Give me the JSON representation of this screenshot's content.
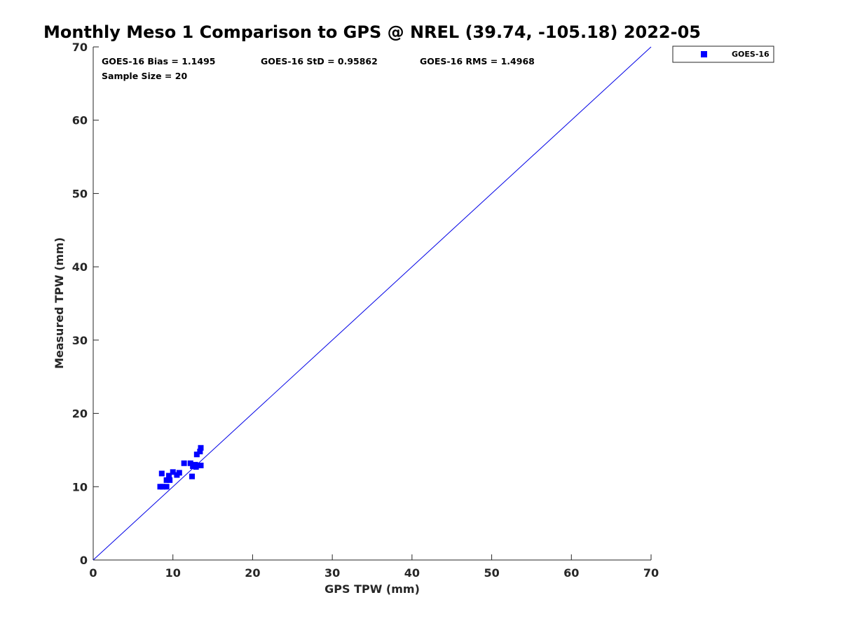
{
  "chart_data": {
    "type": "scatter",
    "title": "Monthly Meso 1 Comparison to GPS @ NREL (39.74, -105.18) 2022-05",
    "xlabel": "GPS TPW (mm)",
    "ylabel": "Measured TPW (mm)",
    "xlim": [
      0,
      70
    ],
    "ylim": [
      0,
      70
    ],
    "xticks": [
      0,
      10,
      20,
      30,
      40,
      50,
      60,
      70
    ],
    "yticks": [
      0,
      10,
      20,
      30,
      40,
      50,
      60,
      70
    ],
    "grid": false,
    "legend_position": "top-right outside",
    "reference_line": {
      "from": [
        0,
        0
      ],
      "to": [
        70,
        70
      ],
      "color": "#0000e6"
    },
    "stats": {
      "bias": "GOES-16 Bias = 1.1495",
      "std": "GOES-16 StD = 0.95862",
      "rms": "GOES-16 RMS = 1.4968",
      "sample_size": "Sample Size = 20"
    },
    "series": [
      {
        "name": "GOES-16",
        "color": "#0000ff",
        "marker": "square",
        "points": [
          [
            8.4,
            10.0
          ],
          [
            8.7,
            10.0
          ],
          [
            9.2,
            10.0
          ],
          [
            8.6,
            11.8
          ],
          [
            9.2,
            10.9
          ],
          [
            9.6,
            10.9
          ],
          [
            9.5,
            11.5
          ],
          [
            10.0,
            12.0
          ],
          [
            10.5,
            11.6
          ],
          [
            10.8,
            11.9
          ],
          [
            11.4,
            13.2
          ],
          [
            12.2,
            13.2
          ],
          [
            12.5,
            12.8
          ],
          [
            12.4,
            11.4
          ],
          [
            12.9,
            12.7
          ],
          [
            13.5,
            12.9
          ],
          [
            13.0,
            14.4
          ],
          [
            13.4,
            14.8
          ],
          [
            13.5,
            15.3
          ],
          [
            12.8,
            13.0
          ]
        ]
      }
    ]
  }
}
